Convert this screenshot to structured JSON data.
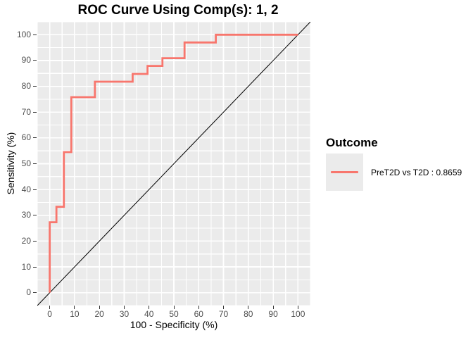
{
  "title": "ROC Curve Using Comp(s): 1, 2",
  "axes": {
    "x_label": "100 - Specificity (%)",
    "y_label": "Sensitivity (%)"
  },
  "legend": {
    "title": "Outcome",
    "entries": [
      {
        "label": "PreT2D vs T2D : 0.8659",
        "color": "#F8766D"
      }
    ]
  },
  "colors": {
    "background": "#FFFFFF",
    "panel_bg": "#EBEBEB",
    "grid_major": "#FFFFFF",
    "grid_minor": "#FFFFFF",
    "roc_line": "#F8766D",
    "diagonal_line": "#000000",
    "tick_label": "#4D4D4D",
    "tick_mark": "#333333"
  },
  "chart_data": {
    "type": "line",
    "subtype": "roc-step-curve",
    "title": "ROC Curve Using Comp(s): 1, 2",
    "xlabel": "100 - Specificity (%)",
    "ylabel": "Sensitivity (%)",
    "xlim": [
      -5,
      105
    ],
    "ylim": [
      -5,
      105
    ],
    "x_ticks": [
      0,
      10,
      20,
      30,
      40,
      50,
      60,
      70,
      80,
      90,
      100
    ],
    "y_ticks": [
      0,
      10,
      20,
      30,
      40,
      50,
      60,
      70,
      80,
      90,
      100
    ],
    "grid": "white major and minor gridlines on gray panel",
    "legend_position": "right",
    "series": [
      {
        "name": "PreT2D vs T2D",
        "auc": 0.8659,
        "color": "#F8766D",
        "points": [
          [
            0,
            0
          ],
          [
            0,
            27.3
          ],
          [
            2.7,
            27.3
          ],
          [
            2.7,
            33.3
          ],
          [
            5.7,
            33.3
          ],
          [
            5.7,
            54.5
          ],
          [
            8.7,
            54.5
          ],
          [
            8.7,
            75.8
          ],
          [
            18.2,
            75.8
          ],
          [
            18.2,
            81.8
          ],
          [
            33.4,
            81.8
          ],
          [
            33.4,
            84.8
          ],
          [
            39.4,
            84.8
          ],
          [
            39.4,
            87.9
          ],
          [
            45.4,
            87.9
          ],
          [
            45.4,
            90.9
          ],
          [
            54.3,
            90.9
          ],
          [
            54.3,
            97.0
          ],
          [
            66.9,
            97.0
          ],
          [
            66.9,
            100
          ],
          [
            100,
            100
          ]
        ]
      }
    ],
    "reference_line": {
      "type": "diagonal",
      "from": [
        -5,
        -5
      ],
      "to": [
        105,
        105
      ],
      "color": "#000000"
    }
  }
}
